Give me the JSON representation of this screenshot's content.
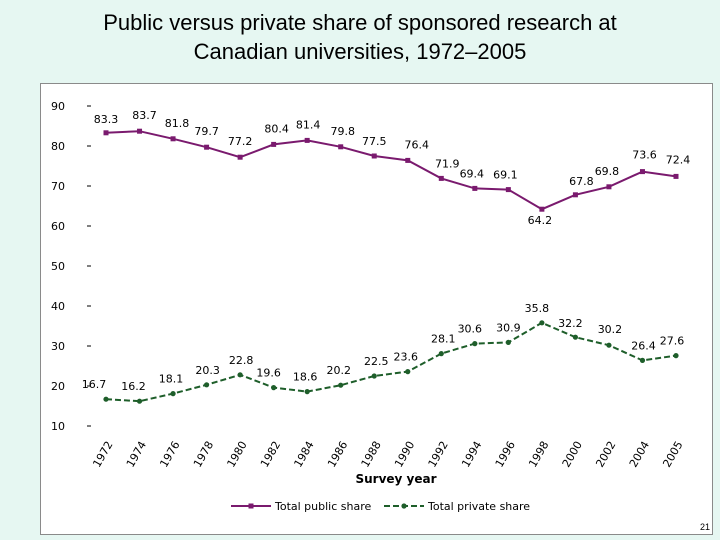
{
  "slide": {
    "title_line1": "Public versus private share of sponsored research at",
    "title_line2": "Canadian universities, 1972–2005",
    "page_number": "21"
  },
  "colors": {
    "public": "#7a1a6e",
    "private": "#1e5e2a",
    "background": "#e6f7f2"
  },
  "chart_data": {
    "type": "line",
    "title": "",
    "xlabel": "Survey year",
    "ylabel": "",
    "ylim": [
      10,
      90
    ],
    "yticks": [
      10,
      20,
      30,
      40,
      50,
      60,
      70,
      80,
      90
    ],
    "x_tick_labels": [
      "1972",
      "1974",
      "1976",
      "1978",
      "1980",
      "1982",
      "1984",
      "1986",
      "1988",
      "1990",
      "1992",
      "1994",
      "1996",
      "1998",
      "2000",
      "2002",
      "2004",
      "2005"
    ],
    "x": [
      1972,
      1974,
      1976,
      1978,
      1980,
      1982,
      1984,
      1986,
      1988,
      1990,
      1992,
      1994,
      1996,
      1998,
      2000,
      2002,
      2004,
      2005
    ],
    "series": [
      {
        "name": "Total public share",
        "values": [
          83.3,
          83.7,
          81.8,
          79.7,
          77.2,
          80.4,
          81.4,
          79.8,
          77.5,
          76.4,
          71.9,
          69.4,
          69.1,
          64.2,
          67.8,
          69.8,
          73.6,
          72.4
        ],
        "marker": "square"
      },
      {
        "name": "Total private share",
        "values": [
          16.7,
          16.2,
          18.1,
          20.3,
          22.8,
          19.6,
          18.6,
          20.2,
          22.5,
          23.6,
          28.1,
          30.6,
          30.9,
          35.8,
          32.2,
          30.2,
          26.4,
          27.6
        ],
        "marker": "circle"
      }
    ],
    "grid": false,
    "legend": "bottom"
  }
}
